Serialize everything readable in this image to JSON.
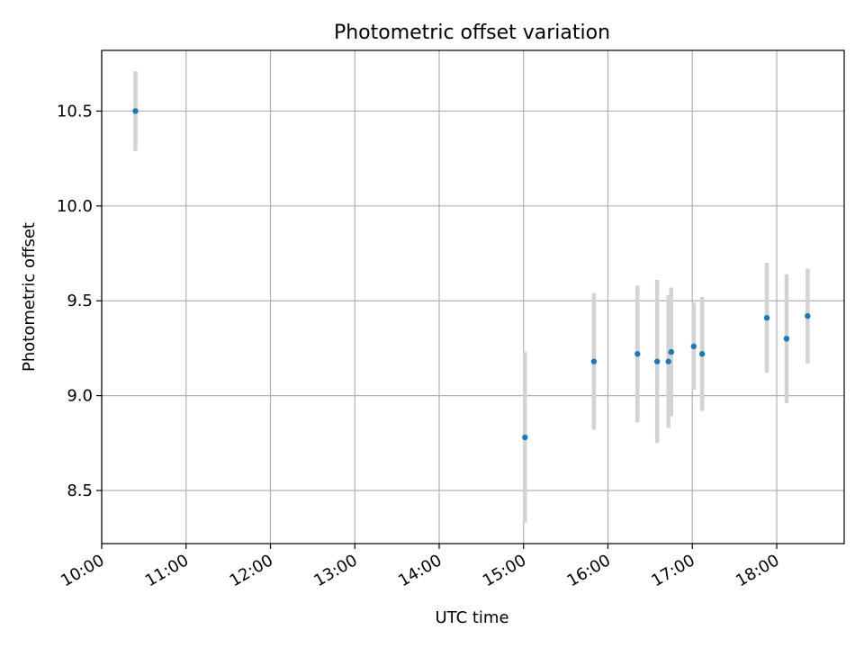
{
  "chart_data": {
    "type": "scatter",
    "title": "Photometric offset variation",
    "xlabel": "UTC time",
    "ylabel": "Photometric offset",
    "xlim": [
      "10:00",
      "18:48"
    ],
    "ylim": [
      8.22,
      10.82
    ],
    "x_ticks": [
      "10:00",
      "11:00",
      "12:00",
      "13:00",
      "14:00",
      "15:00",
      "16:00",
      "17:00",
      "18:00"
    ],
    "y_ticks": [
      8.5,
      9.0,
      9.5,
      10.0,
      10.5
    ],
    "grid": true,
    "series": [
      {
        "marker_color": "#1f77b4",
        "errorbar_color": "#d3d3d3",
        "points": [
          {
            "x": "10:24",
            "y": 10.5,
            "yerr": 0.21
          },
          {
            "x": "15:01",
            "y": 8.78,
            "yerr": 0.45
          },
          {
            "x": "15:50",
            "y": 9.18,
            "yerr": 0.36
          },
          {
            "x": "16:21",
            "y": 9.22,
            "yerr": 0.36
          },
          {
            "x": "16:35",
            "y": 9.18,
            "yerr": 0.43
          },
          {
            "x": "16:43",
            "y": 9.18,
            "yerr": 0.35
          },
          {
            "x": "16:45",
            "y": 9.23,
            "yerr": 0.34
          },
          {
            "x": "17:01",
            "y": 9.26,
            "yerr": 0.23
          },
          {
            "x": "17:07",
            "y": 9.22,
            "yerr": 0.3
          },
          {
            "x": "17:53",
            "y": 9.41,
            "yerr": 0.29
          },
          {
            "x": "18:07",
            "y": 9.3,
            "yerr": 0.34
          },
          {
            "x": "18:22",
            "y": 9.42,
            "yerr": 0.25
          }
        ]
      }
    ]
  }
}
